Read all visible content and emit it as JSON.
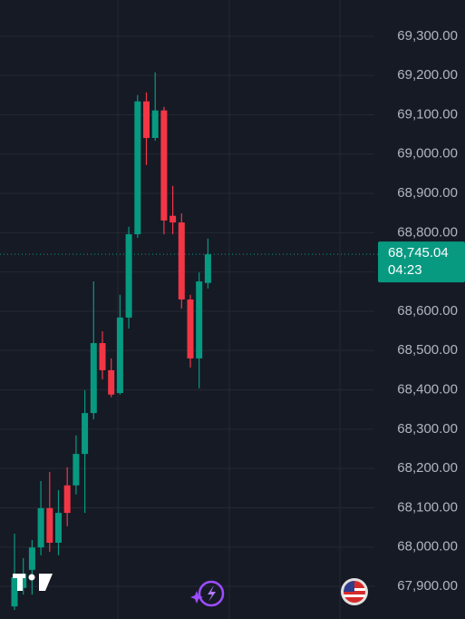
{
  "chart_data": {
    "type": "candlestick",
    "open": [
      67849,
      67896,
      67942,
      67999,
      68099,
      68011,
      68157,
      68157,
      68237,
      68341,
      68519,
      68450,
      68392,
      68584,
      68796,
      69134,
      69041,
      69111,
      68843,
      68826,
      68630,
      68480,
      68672
    ],
    "high": [
      68034,
      67972,
      68018,
      68168,
      68191,
      68145,
      68203,
      68284,
      68399,
      68676,
      68549,
      68480,
      68642,
      68815,
      69150,
      69157,
      69208,
      69120,
      68919,
      68849,
      68642,
      68699,
      68785
    ],
    "low": [
      67840,
      67879,
      67879,
      67979,
      67988,
      67979,
      68053,
      68134,
      68087,
      68325,
      68427,
      68381,
      68388,
      68556,
      68787,
      68972,
      69034,
      68796,
      68796,
      68607,
      68457,
      68404,
      68658
    ],
    "close": [
      67923,
      67932,
      67999,
      68099,
      68011,
      68087,
      68087,
      68237,
      68341,
      68519,
      68450,
      68388,
      68584,
      68796,
      69134,
      69041,
      69111,
      68831,
      68826,
      68630,
      68480,
      68676,
      68745.04
    ],
    "up_color": "#089981",
    "down_color": "#f23645",
    "ylim": [
      67817,
      69392
    ],
    "yticks": [
      {
        "value": 67900,
        "label": "67,900.00"
      },
      {
        "value": 68000,
        "label": "68,000.00"
      },
      {
        "value": 68100,
        "label": "68,100.00"
      },
      {
        "value": 68200,
        "label": "68,200.00"
      },
      {
        "value": 68300,
        "label": "68,300.00"
      },
      {
        "value": 68400,
        "label": "68,400.00"
      },
      {
        "value": 68500,
        "label": "68,500.00"
      },
      {
        "value": 68600,
        "label": "68,600.00"
      },
      {
        "value": 68700,
        "label": "68,700.00"
      },
      {
        "value": 68800,
        "label": "68,800.00"
      },
      {
        "value": 68900,
        "label": "68,900.00"
      },
      {
        "value": 69000,
        "label": "69,000.00"
      },
      {
        "value": 69100,
        "label": "69,100.00"
      },
      {
        "value": 69200,
        "label": "69,200.00"
      },
      {
        "value": 69300,
        "label": "69,300.00"
      }
    ],
    "grid": true,
    "last_price": {
      "value": 68745.04,
      "label": "68,745.04"
    },
    "countdown": "04:23"
  }
}
